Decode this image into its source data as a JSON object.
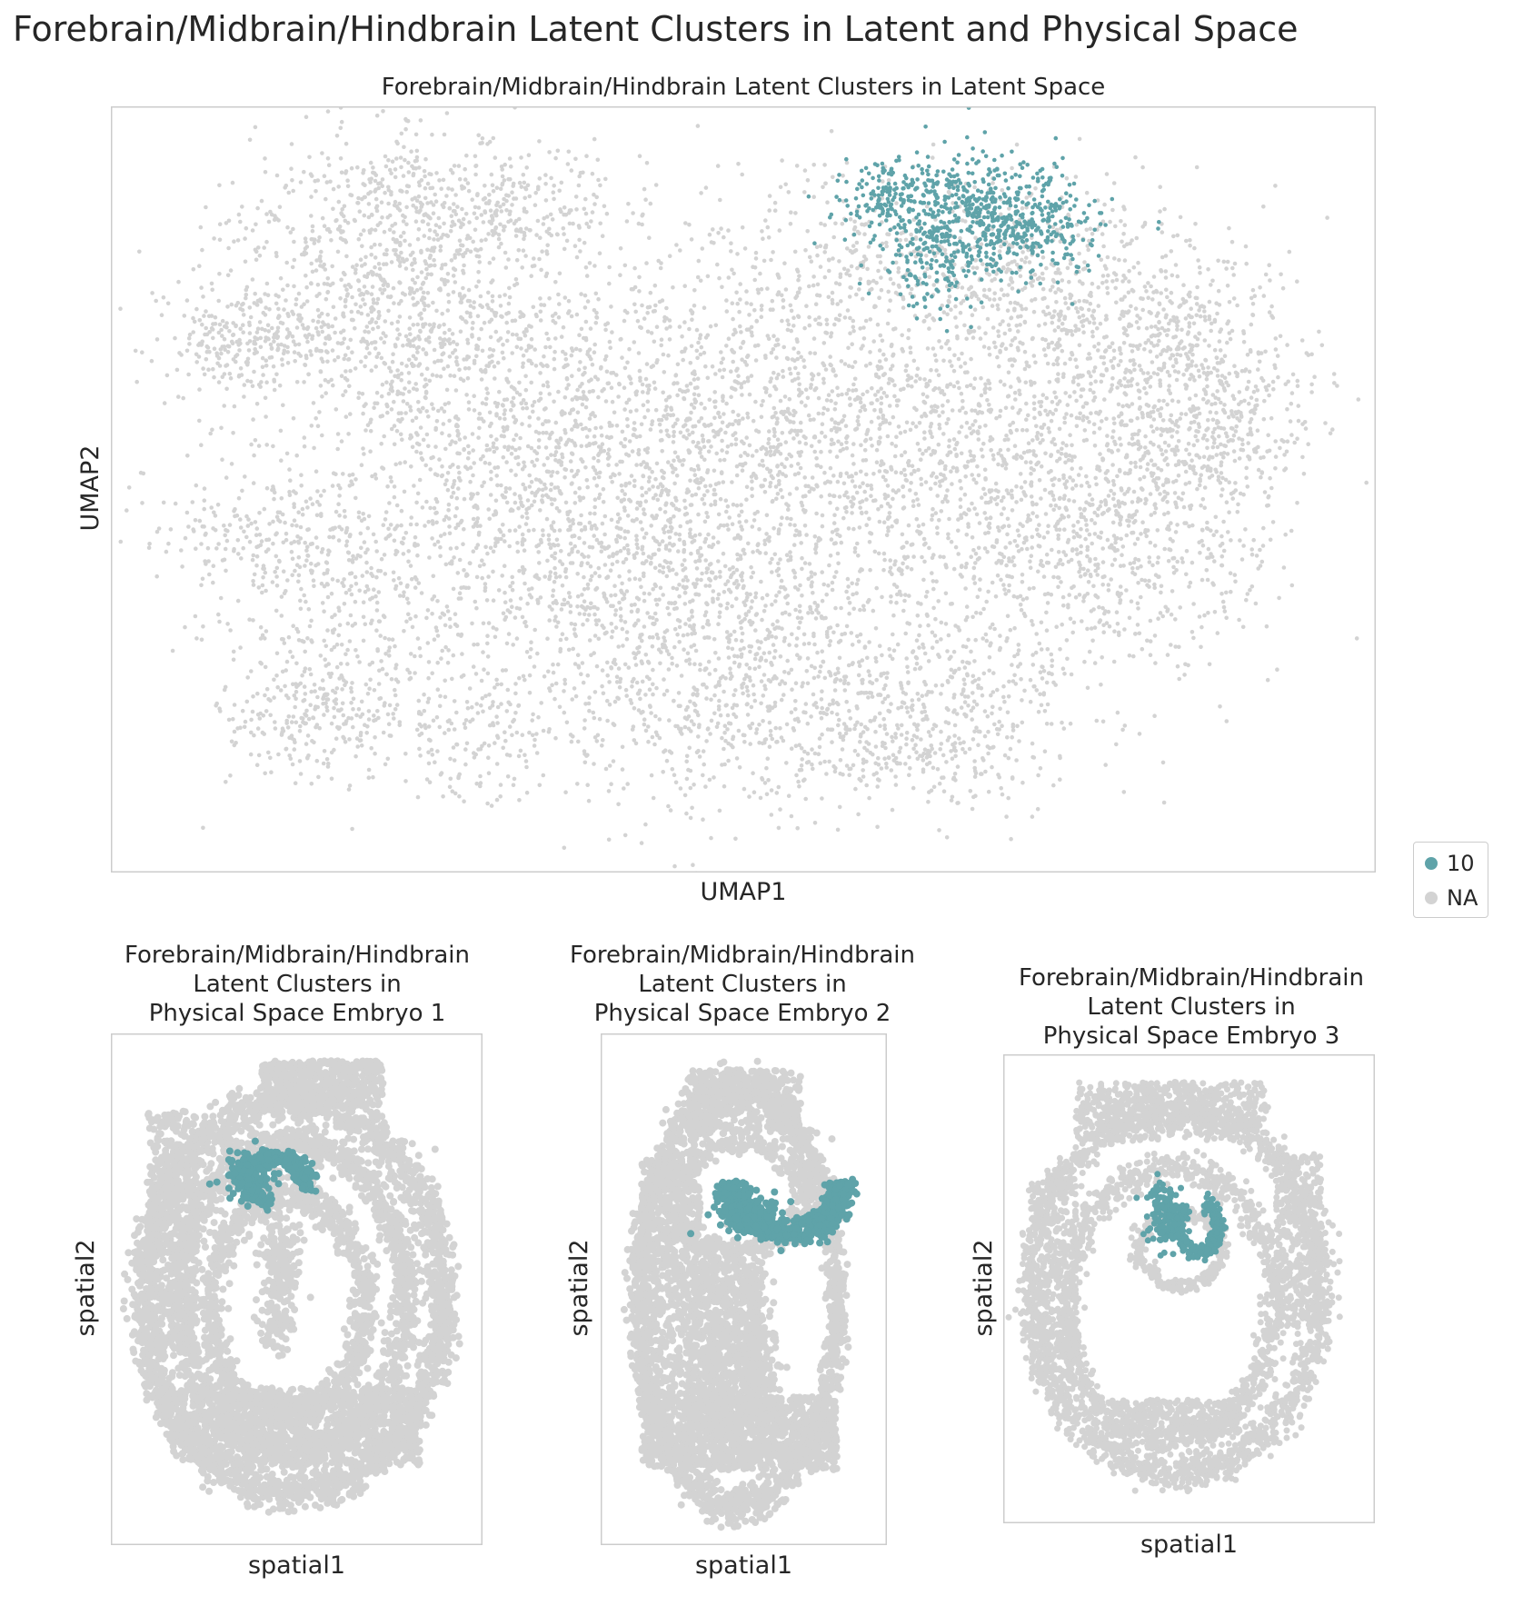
{
  "figure": {
    "suptitle": "Forebrain/Midbrain/Hindbrain Latent Clusters in Latent and Physical Space"
  },
  "colors": {
    "cluster": "#5fa3a9",
    "na": "#d3d3d3",
    "frame": "#cccccc"
  },
  "legend": {
    "placement": "right",
    "items": [
      {
        "label": "10",
        "color": "#5fa3a9"
      },
      {
        "label": "NA",
        "color": "#d3d3d3"
      }
    ]
  },
  "chart_data": [
    {
      "type": "scatter",
      "title": "Forebrain/Midbrain/Hindbrain Latent Clusters in Latent Space",
      "xlabel": "UMAP1",
      "ylabel": "UMAP2",
      "ticks": "none",
      "grid": false,
      "series": [
        {
          "name": "10",
          "color": "#5fa3a9",
          "region": "upper-right lobe"
        },
        {
          "name": "NA",
          "color": "#d3d3d3",
          "region": "remaining cells"
        }
      ]
    },
    {
      "type": "scatter",
      "title": "Forebrain/Midbrain/Hindbrain\nLatent Clusters in\nPhysical Space Embryo 1",
      "xlabel": "spatial1",
      "ylabel": "spatial2",
      "ticks": "none",
      "grid": false,
      "series": [
        {
          "name": "10",
          "color": "#5fa3a9"
        },
        {
          "name": "NA",
          "color": "#d3d3d3"
        }
      ]
    },
    {
      "type": "scatter",
      "title": "Forebrain/Midbrain/Hindbrain\nLatent Clusters in\nPhysical Space Embryo 2",
      "xlabel": "spatial1",
      "ylabel": "spatial2",
      "ticks": "none",
      "grid": false,
      "series": [
        {
          "name": "10",
          "color": "#5fa3a9"
        },
        {
          "name": "NA",
          "color": "#d3d3d3"
        }
      ]
    },
    {
      "type": "scatter",
      "title": "Forebrain/Midbrain/Hindbrain\nLatent Clusters in\nPhysical Space Embryo 3",
      "xlabel": "spatial1",
      "ylabel": "spatial2",
      "ticks": "none",
      "grid": false,
      "series": [
        {
          "name": "10",
          "color": "#5fa3a9"
        },
        {
          "name": "NA",
          "color": "#d3d3d3"
        }
      ]
    }
  ]
}
